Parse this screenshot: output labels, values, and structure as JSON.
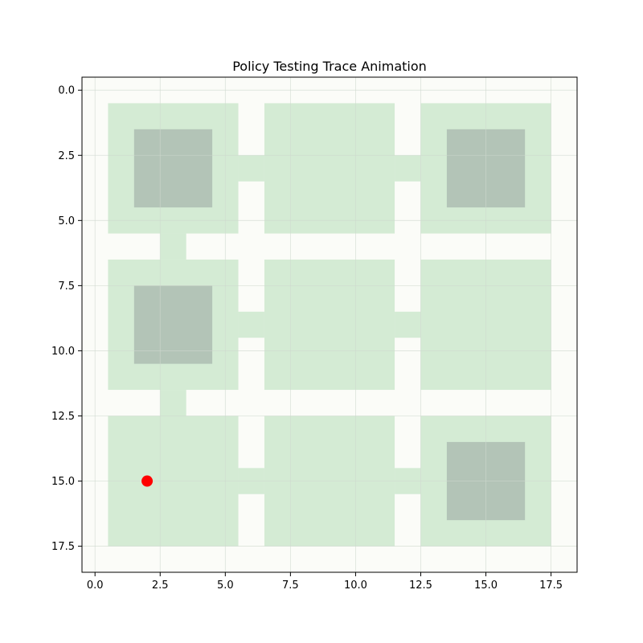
{
  "chart_data": {
    "type": "heatmap",
    "title": "Policy Testing Trace Animation",
    "xlim": [
      -0.5,
      18.5
    ],
    "ylim": [
      18.5,
      -0.5
    ],
    "y_inverted": true,
    "grid": true,
    "x_ticks": [
      0.0,
      2.5,
      5.0,
      7.5,
      10.0,
      12.5,
      15.0,
      17.5
    ],
    "x_tick_labels": [
      "0.0",
      "2.5",
      "5.0",
      "7.5",
      "10.0",
      "12.5",
      "15.0",
      "17.5"
    ],
    "y_ticks": [
      0.0,
      2.5,
      5.0,
      7.5,
      10.0,
      12.5,
      15.0,
      17.5
    ],
    "y_tick_labels": [
      "0.0",
      "2.5",
      "5.0",
      "7.5",
      "10.0",
      "12.5",
      "15.0",
      "17.5"
    ],
    "colors": {
      "path": "#fbfcf8",
      "room": "#d4ebd4",
      "obstacle": "#b3c4b7",
      "agent": "#ff0000",
      "grid": "#cfd8cf"
    },
    "rooms": [
      {
        "x0": 0.5,
        "x1": 5.5,
        "y0": 0.5,
        "y1": 5.5
      },
      {
        "x0": 6.5,
        "x1": 11.5,
        "y0": 0.5,
        "y1": 5.5
      },
      {
        "x0": 12.5,
        "x1": 17.5,
        "y0": 0.5,
        "y1": 5.5
      },
      {
        "x0": 0.5,
        "x1": 5.5,
        "y0": 6.5,
        "y1": 11.5
      },
      {
        "x0": 6.5,
        "x1": 11.5,
        "y0": 6.5,
        "y1": 11.5
      },
      {
        "x0": 12.5,
        "x1": 17.5,
        "y0": 6.5,
        "y1": 11.5
      },
      {
        "x0": 0.5,
        "x1": 5.5,
        "y0": 12.5,
        "y1": 17.5
      },
      {
        "x0": 6.5,
        "x1": 11.5,
        "y0": 12.5,
        "y1": 17.5
      },
      {
        "x0": 12.5,
        "x1": 17.5,
        "y0": 12.5,
        "y1": 17.5
      }
    ],
    "doors": [
      {
        "x0": 5.5,
        "x1": 6.5,
        "y0": 2.5,
        "y1": 3.5
      },
      {
        "x0": 11.5,
        "x1": 12.5,
        "y0": 2.5,
        "y1": 3.5
      },
      {
        "x0": 5.5,
        "x1": 6.5,
        "y0": 8.5,
        "y1": 9.5
      },
      {
        "x0": 11.5,
        "x1": 12.5,
        "y0": 8.5,
        "y1": 9.5
      },
      {
        "x0": 5.5,
        "x1": 6.5,
        "y0": 14.5,
        "y1": 15.5
      },
      {
        "x0": 11.5,
        "x1": 12.5,
        "y0": 14.5,
        "y1": 15.5
      },
      {
        "x0": 2.5,
        "x1": 3.5,
        "y0": 5.5,
        "y1": 6.5
      },
      {
        "x0": 2.5,
        "x1": 3.5,
        "y0": 11.5,
        "y1": 12.5
      }
    ],
    "obstacles": [
      {
        "x0": 1.5,
        "x1": 4.5,
        "y0": 1.5,
        "y1": 4.5
      },
      {
        "x0": 13.5,
        "x1": 16.5,
        "y0": 1.5,
        "y1": 4.5
      },
      {
        "x0": 1.5,
        "x1": 4.5,
        "y0": 7.5,
        "y1": 10.5
      },
      {
        "x0": 13.5,
        "x1": 16.5,
        "y0": 13.5,
        "y1": 16.5
      }
    ],
    "agent": {
      "x": 2,
      "y": 15
    }
  }
}
